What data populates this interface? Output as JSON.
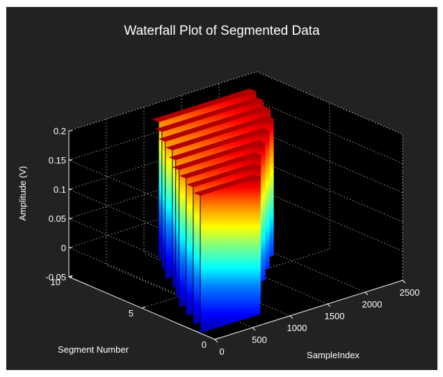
{
  "chart_data": {
    "type": "area",
    "title": "Waterfall Plot of Segmented Data",
    "xlabel": "SampleIndex",
    "ylabel": "Segment Number",
    "zlabel": "Amplitude (V)",
    "xlim": [
      0,
      2500
    ],
    "ylim": [
      0,
      10
    ],
    "zlim": [
      -0.05,
      0.2
    ],
    "x_ticks": [
      "0",
      "500",
      "1000",
      "1500",
      "2000",
      "2500"
    ],
    "y_ticks": [
      "0",
      "5",
      "10"
    ],
    "z_ticks": [
      "-0.05",
      "0",
      "0.05",
      "0.1",
      "0.15",
      "0.2"
    ],
    "colormap": "jet",
    "grid": true,
    "background": "#000000",
    "figure_color": "#222222",
    "segments": [
      {
        "segment": 9,
        "x_start": 1000,
        "x_end": 2300,
        "z_min": -0.05,
        "z_max": 0.185
      },
      {
        "segment": 8,
        "x_start": 850,
        "x_end": 2200,
        "z_min": -0.05,
        "z_max": 0.185
      },
      {
        "segment": 7,
        "x_start": 700,
        "x_end": 2100,
        "z_min": -0.05,
        "z_max": 0.185
      },
      {
        "segment": 6,
        "x_start": 600,
        "x_end": 1950,
        "z_min": -0.05,
        "z_max": 0.185
      },
      {
        "segment": 5,
        "x_start": 450,
        "x_end": 1700,
        "z_min": -0.05,
        "z_max": 0.185
      },
      {
        "segment": 4,
        "x_start": 300,
        "x_end": 1450,
        "z_min": -0.05,
        "z_max": 0.185
      },
      {
        "segment": 3,
        "x_start": 200,
        "x_end": 1200,
        "z_min": -0.05,
        "z_max": 0.185
      },
      {
        "segment": 2,
        "x_start": 100,
        "x_end": 1000,
        "z_min": -0.05,
        "z_max": 0.185
      },
      {
        "segment": 1,
        "x_start": 0,
        "x_end": 800,
        "z_min": -0.05,
        "z_max": 0.185
      }
    ]
  }
}
